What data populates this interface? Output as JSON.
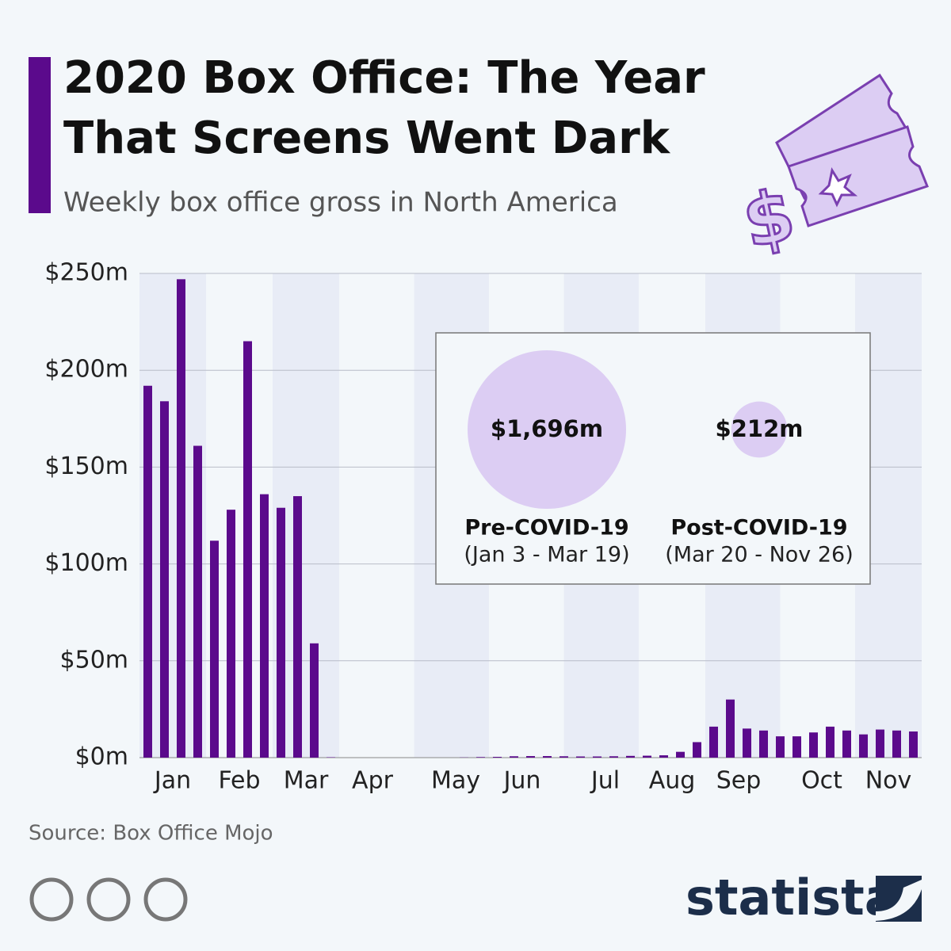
{
  "chart_data": {
    "type": "bar",
    "title": "2020 Box Office: The Year That Screens Went Dark",
    "subtitle": "Weekly box office gross in North America",
    "color": "#5b0a8c",
    "categories": [
      null,
      "Jan",
      null,
      null,
      null,
      "Feb",
      null,
      null,
      null,
      "Mar",
      null,
      null,
      null,
      "Apr",
      null,
      null,
      null,
      null,
      "May",
      null,
      null,
      null,
      "Jun",
      null,
      null,
      null,
      null,
      "Jul",
      null,
      null,
      null,
      "Aug",
      null,
      null,
      null,
      "Sep",
      null,
      null,
      null,
      null,
      "Oct",
      null,
      null,
      null,
      "Nov",
      null,
      null
    ],
    "values": [
      192,
      184,
      247,
      161,
      112,
      128,
      215,
      136,
      129,
      135,
      59,
      0.2,
      0,
      0,
      0,
      0,
      0,
      0,
      0,
      0.1,
      0.3,
      0.4,
      0.7,
      0.8,
      0.8,
      0.7,
      0.6,
      0.6,
      0.7,
      0.9,
      1,
      1.2,
      3,
      8,
      16,
      30,
      15,
      14,
      11,
      11,
      13,
      16,
      14,
      12,
      14.5,
      14,
      13.5
    ],
    "ylim": [
      0,
      250
    ],
    "yticks": [
      {
        "value": 0,
        "label": "$0m"
      },
      {
        "value": 50,
        "label": "$50m"
      },
      {
        "value": 100,
        "label": "$100m"
      },
      {
        "value": 150,
        "label": "$150m"
      },
      {
        "value": 200,
        "label": "$200m"
      },
      {
        "value": 250,
        "label": "$250m"
      }
    ],
    "grid": true,
    "inset": [
      {
        "value": 1696,
        "value_label": "$1,696m",
        "name": "Pre-COVID-19",
        "period": "(Jan 3 - Mar 19)"
      },
      {
        "value": 212,
        "value_label": "$212m",
        "name": "Post-COVID-19",
        "period": "(Mar 20 - Nov 26)"
      }
    ],
    "source": "Source: Box Office Mojo",
    "brand": "statista"
  }
}
